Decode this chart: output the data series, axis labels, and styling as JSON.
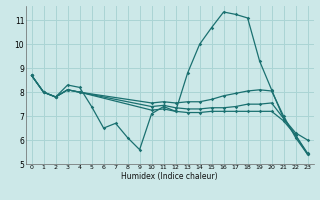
{
  "xlabel": "Humidex (Indice chaleur)",
  "background_color": "#cce8e8",
  "grid_color": "#aad4d4",
  "line_color": "#1a7070",
  "xlim": [
    -0.5,
    23.5
  ],
  "ylim": [
    5.0,
    11.6
  ],
  "xticks": [
    0,
    1,
    2,
    3,
    4,
    5,
    6,
    7,
    8,
    9,
    10,
    11,
    12,
    13,
    14,
    15,
    16,
    17,
    18,
    19,
    20,
    21,
    22,
    23
  ],
  "yticks": [
    5,
    6,
    7,
    8,
    9,
    10,
    11
  ],
  "line1": {
    "x": [
      0,
      1,
      2,
      3,
      4,
      5,
      6,
      7,
      8,
      9,
      10,
      11,
      12,
      13,
      14,
      15,
      16,
      17,
      18,
      19,
      20,
      21,
      22,
      23
    ],
    "y": [
      8.7,
      8.0,
      7.8,
      8.3,
      8.2,
      7.4,
      6.5,
      6.7,
      6.1,
      5.6,
      7.1,
      7.4,
      7.2,
      8.8,
      10.0,
      10.7,
      11.35,
      11.25,
      11.1,
      9.3,
      8.1,
      6.9,
      6.3,
      6.0
    ]
  },
  "line2": {
    "x": [
      0,
      1,
      2,
      3,
      4,
      10,
      11,
      12,
      13,
      14,
      15,
      16,
      17,
      18,
      19,
      20,
      21,
      22,
      23
    ],
    "y": [
      8.7,
      8.0,
      7.8,
      8.1,
      8.0,
      7.25,
      7.3,
      7.2,
      7.15,
      7.15,
      7.2,
      7.2,
      7.2,
      7.2,
      7.2,
      7.2,
      6.8,
      6.2,
      5.4
    ]
  },
  "line3": {
    "x": [
      0,
      1,
      2,
      3,
      4,
      10,
      11,
      12,
      13,
      14,
      15,
      16,
      17,
      18,
      19,
      20,
      21,
      22,
      23
    ],
    "y": [
      8.7,
      8.0,
      7.8,
      8.1,
      8.0,
      7.4,
      7.45,
      7.35,
      7.3,
      7.3,
      7.35,
      7.35,
      7.4,
      7.5,
      7.5,
      7.55,
      6.9,
      6.2,
      5.45
    ]
  },
  "line4": {
    "x": [
      0,
      1,
      2,
      3,
      4,
      10,
      11,
      12,
      13,
      14,
      15,
      16,
      17,
      18,
      19,
      20,
      21,
      22,
      23
    ],
    "y": [
      8.7,
      8.0,
      7.8,
      8.1,
      8.0,
      7.55,
      7.6,
      7.55,
      7.6,
      7.6,
      7.7,
      7.85,
      7.95,
      8.05,
      8.1,
      8.05,
      7.0,
      6.1,
      5.4
    ]
  }
}
